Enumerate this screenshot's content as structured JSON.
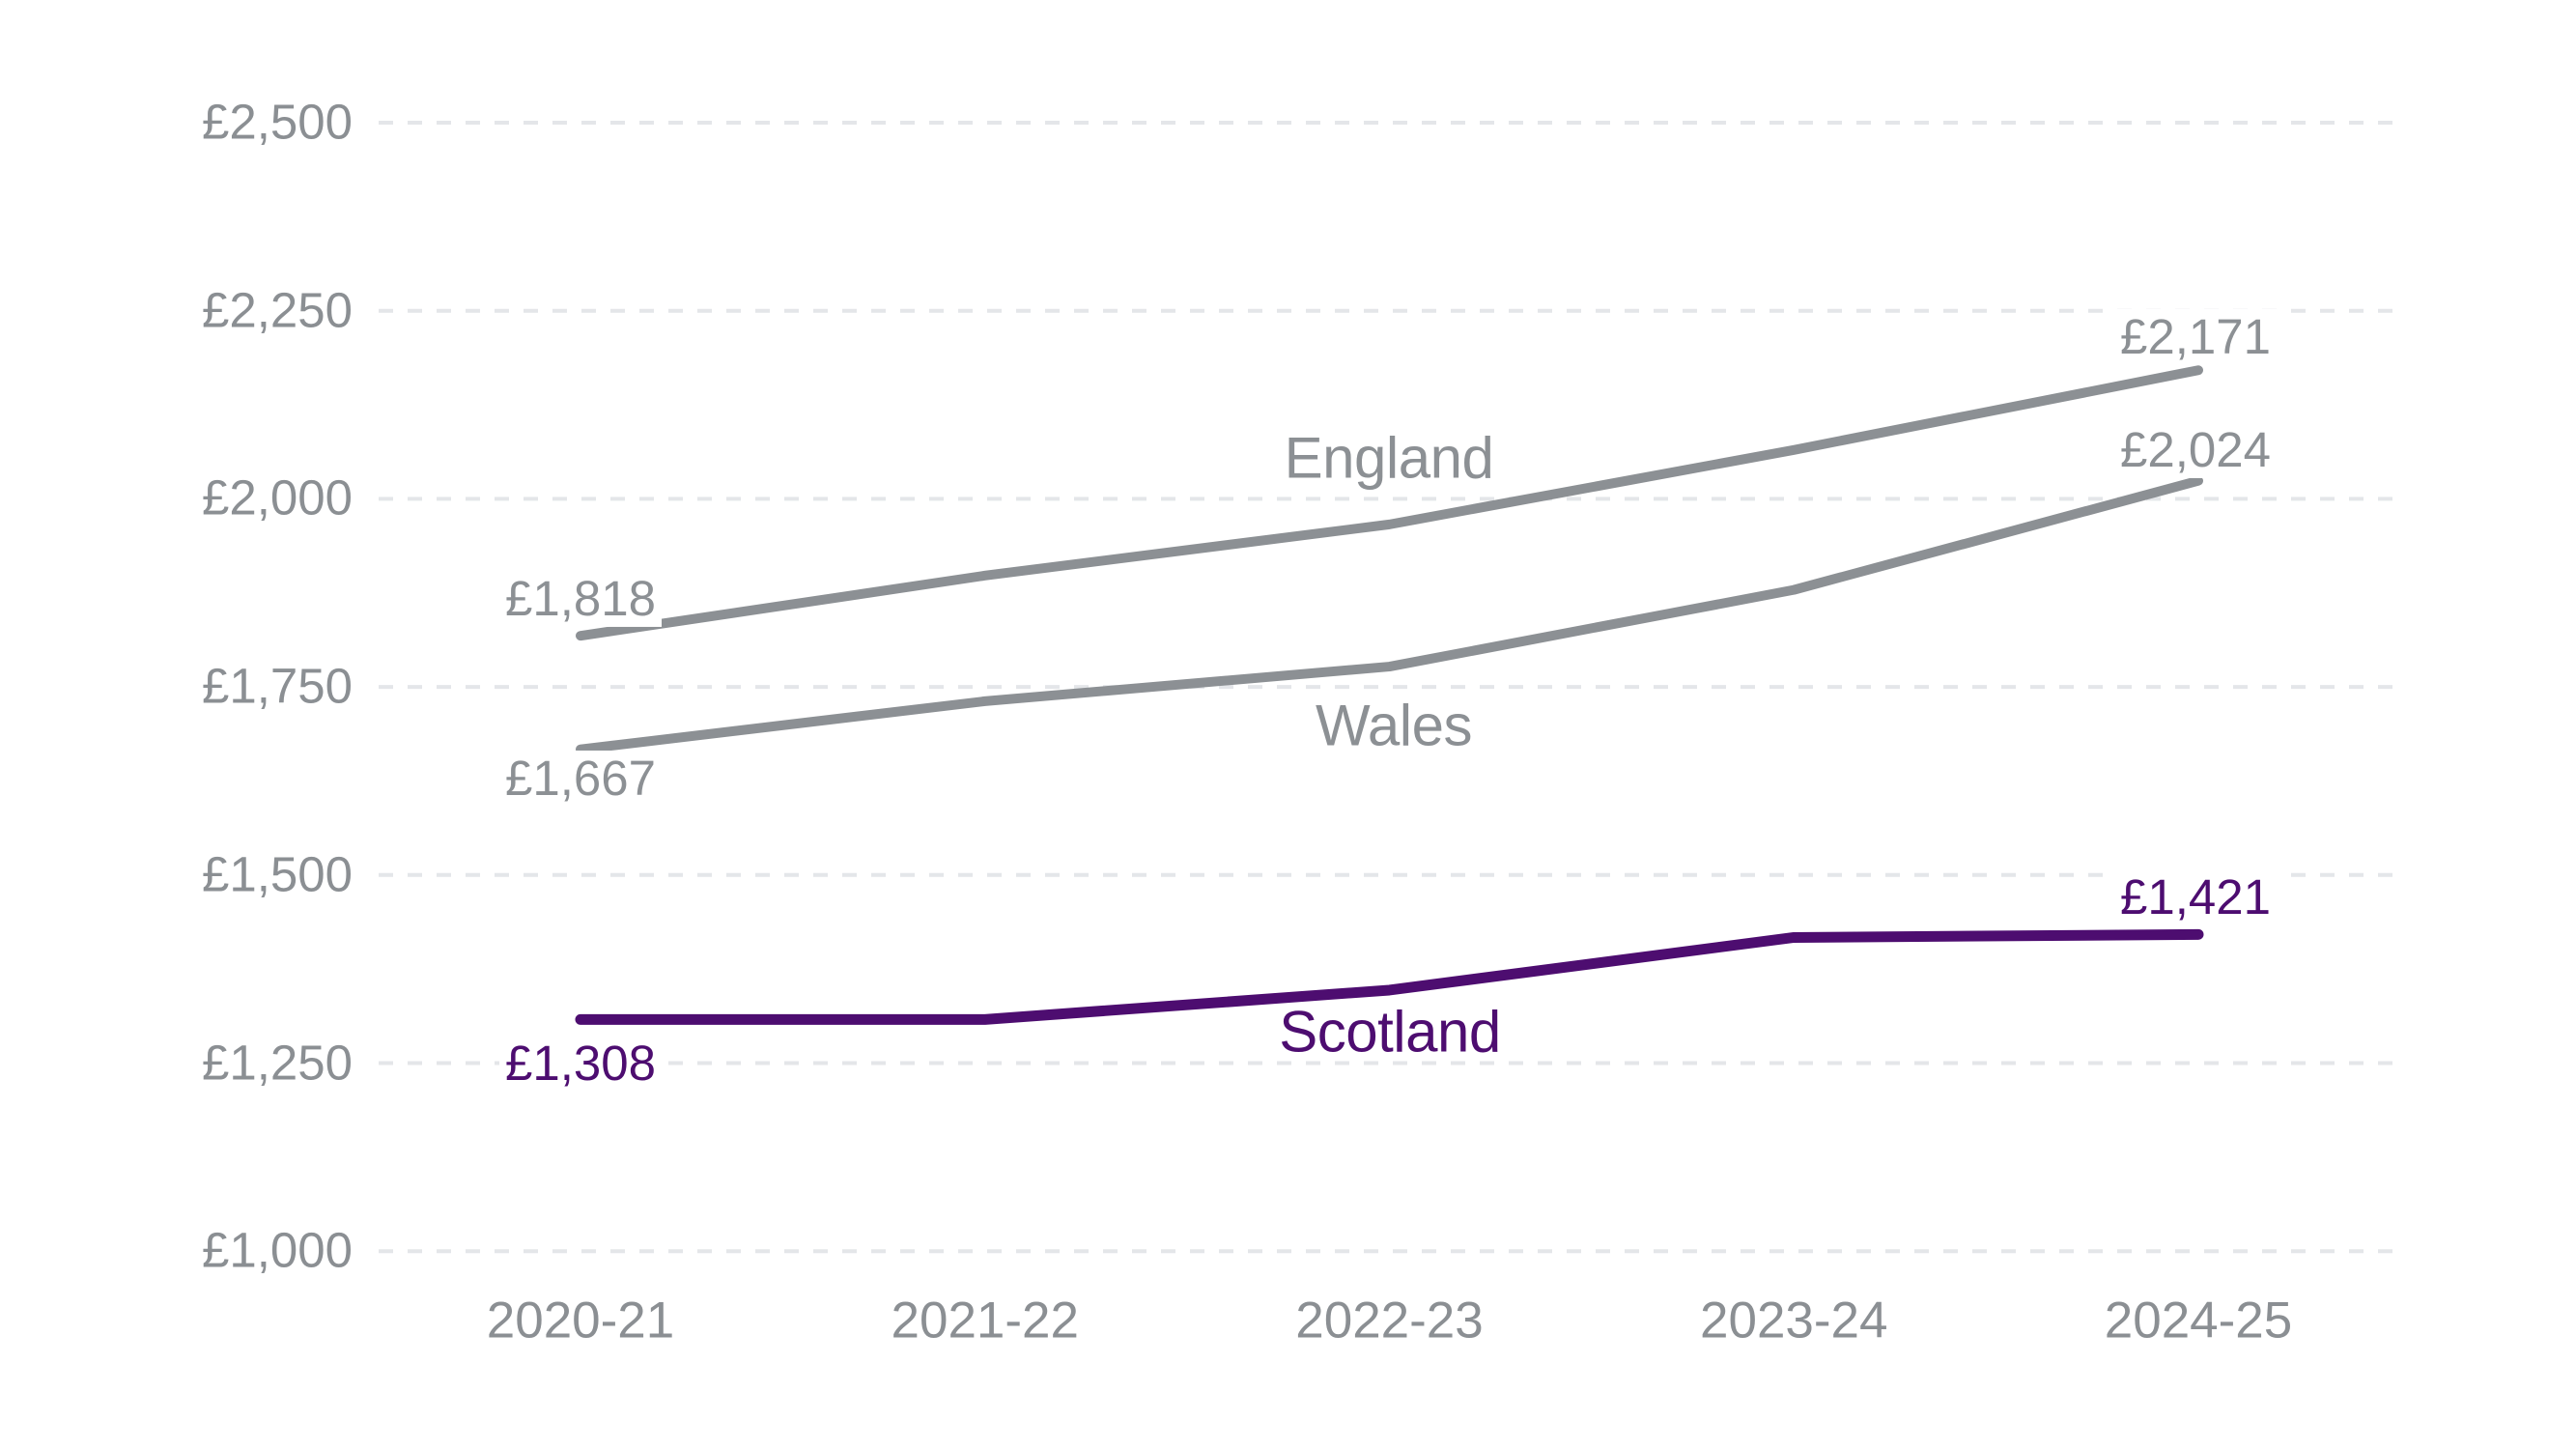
{
  "colors": {
    "background": "#ffffff",
    "grid": "#e4e6e9",
    "axis_text": "#8b8f93",
    "england_wales_line": "#8c9094",
    "scotland_line": "#4d0d70"
  },
  "chart_data": {
    "type": "line",
    "x_categories": [
      "2020-21",
      "2021-22",
      "2022-23",
      "2023-24",
      "2024-25"
    ],
    "y_axis_tick_labels": [
      "£2,500",
      "£2,250",
      "£2,000",
      "£1,750",
      "£1,500",
      "£1,250",
      "£1,000"
    ],
    "y_axis_tick_values": [
      2500,
      2250,
      2000,
      1750,
      1500,
      1250,
      1000
    ],
    "y_range": [
      1000,
      2500
    ],
    "grid": "horizontal-dashed",
    "legend_position": "inline-labels-on-lines",
    "series": [
      {
        "name": "England",
        "color_key": "england_wales_line",
        "values": [
          1818,
          1898,
          1966,
          2065,
          2171
        ],
        "first_point_label": "£1,818",
        "last_point_label": "£2,171"
      },
      {
        "name": "Wales",
        "color_key": "england_wales_line",
        "values": [
          1667,
          1731,
          1777,
          1879,
          2024
        ],
        "first_point_label": "£1,667",
        "last_point_label": "£2,024"
      },
      {
        "name": "Scotland",
        "color_key": "scotland_line",
        "values": [
          1308,
          1308,
          1347,
          1417,
          1421
        ],
        "first_point_label": "£1,308",
        "last_point_label": "£1,421"
      }
    ]
  }
}
